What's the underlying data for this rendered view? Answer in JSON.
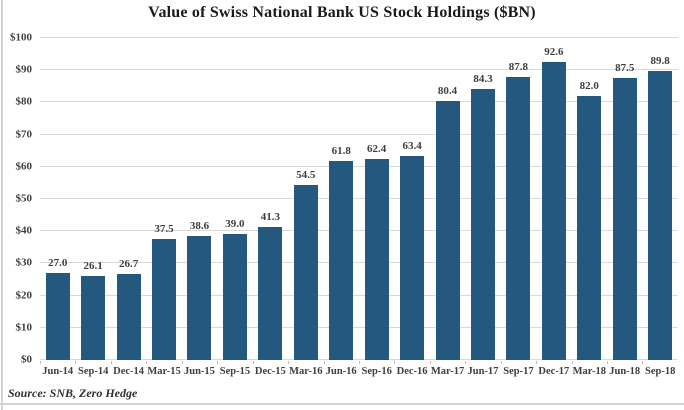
{
  "chart_data": {
    "type": "bar",
    "title": "Value of Swiss National Bank US Stock Holdings ($BN)",
    "categories": [
      "Jun-14",
      "Sep-14",
      "Dec-14",
      "Mar-15",
      "Jun-15",
      "Sep-15",
      "Dec-15",
      "Mar-16",
      "Jun-16",
      "Sep-16",
      "Dec-16",
      "Mar-17",
      "Jun-17",
      "Sep-17",
      "Dec-17",
      "Mar-18",
      "Jun-18",
      "Sep-18"
    ],
    "values": [
      27.0,
      26.1,
      26.7,
      37.5,
      38.6,
      39.0,
      41.3,
      54.5,
      61.8,
      62.4,
      63.4,
      80.4,
      84.3,
      87.8,
      92.6,
      82.0,
      87.5,
      89.8
    ],
    "value_labels": [
      "27.0",
      "26.1",
      "26.7",
      "37.5",
      "38.6",
      "39.0",
      "41.3",
      "54.5",
      "61.8",
      "62.4",
      "63.4",
      "80.4",
      "84.3",
      "87.8",
      "92.6",
      "82.0",
      "87.5",
      "89.8"
    ],
    "xlabel": "",
    "ylabel": "",
    "ylim": [
      0,
      100
    ],
    "ytick_step": 10,
    "ytick_labels": [
      "$0",
      "$10",
      "$20",
      "$30",
      "$40",
      "$50",
      "$60",
      "$70",
      "$80",
      "$90",
      "$100"
    ],
    "grid": true,
    "legend_position": "none",
    "bar_color": "#25587E",
    "grid_color": "#d9d9d9",
    "label_color": "#3f3f3f"
  },
  "source": {
    "text": "Source: SNB, Zero Hedge"
  }
}
